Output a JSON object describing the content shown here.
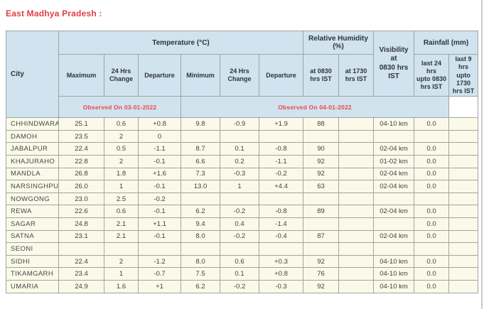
{
  "page": {
    "title": "East Madhya Pradesh :"
  },
  "table": {
    "group_headers": {
      "city": "City",
      "temperature": "Temperature (°C)",
      "humidity": "Relative Humidity (%)",
      "visibility": "Visibility at\n0830 hrs IST",
      "rainfall": "Rainfall (mm)"
    },
    "sub_headers": [
      "Maximum",
      "24 Hrs\nChange",
      "Departure",
      "Minimum",
      "24 Hrs\nChange",
      "Departure",
      "at 0830\nhrs IST",
      "at 1730\nhrs IST",
      "last 24 hrs\nupto 0830\nhrs IST",
      "last 9 hrs\nupto 1730\nhrs IST"
    ],
    "observed_left": "Observed On 03-01-2022",
    "observed_right": "Observed On 04-01-2022",
    "rows": [
      {
        "city": "CHHINDWARA",
        "values": [
          "25.1",
          "0.6",
          "+0.8",
          "9.8",
          "-0.9",
          "+1.9",
          "88",
          "",
          "04-10 km",
          "0.0",
          ""
        ]
      },
      {
        "city": "DAMOH",
        "values": [
          "23.5",
          "2",
          "0",
          "",
          "",
          "",
          "",
          "",
          "",
          "",
          ""
        ]
      },
      {
        "city": "JABALPUR",
        "values": [
          "22.4",
          "0.5",
          "-1.1",
          "8.7",
          "0.1",
          "-0.8",
          "90",
          "",
          "02-04 km",
          "0.0",
          ""
        ]
      },
      {
        "city": "KHAJURAHO",
        "values": [
          "22.8",
          "2",
          "-0.1",
          "6.6",
          "0.2",
          "-1.1",
          "92",
          "",
          "01-02 km",
          "0.0",
          ""
        ]
      },
      {
        "city": "MANDLA",
        "values": [
          "26.8",
          "1.8",
          "+1.6",
          "7.3",
          "-0.3",
          "-0.2",
          "92",
          "",
          "02-04 km",
          "0.0",
          ""
        ]
      },
      {
        "city": "NARSINGHPUR",
        "values": [
          "26.0",
          "1",
          "-0.1",
          "13.0",
          "1",
          "+4.4",
          "63",
          "",
          "02-04 km",
          "0.0",
          ""
        ]
      },
      {
        "city": "NOWGONG",
        "values": [
          "23.0",
          "2.5",
          "-0.2",
          "",
          "",
          "",
          "",
          "",
          "",
          "",
          ""
        ]
      },
      {
        "city": "REWA",
        "values": [
          "22.6",
          "0.6",
          "-0.1",
          "6.2",
          "-0.2",
          "-0.8",
          "89",
          "",
          "02-04 km",
          "0.0",
          ""
        ]
      },
      {
        "city": "SAGAR",
        "values": [
          "24.8",
          "2.1",
          "+1.1",
          "9.4",
          "0.4",
          "-1.4",
          "",
          "",
          "",
          "0.0",
          ""
        ]
      },
      {
        "city": "SATNA",
        "values": [
          "23.1",
          "2.1",
          "-0.1",
          "8.0",
          "-0.2",
          "-0.4",
          "87",
          "",
          "02-04 km",
          "0.0",
          ""
        ]
      },
      {
        "city": "SEONI",
        "values": [
          "",
          "",
          "",
          "",
          "",
          "",
          "",
          "",
          "",
          "",
          ""
        ]
      },
      {
        "city": "SIDHI",
        "values": [
          "22.4",
          "2",
          "-1.2",
          "8.0",
          "0.6",
          "+0.3",
          "92",
          "",
          "04-10 km",
          "0.0",
          ""
        ]
      },
      {
        "city": "TIKAMGARH",
        "values": [
          "23.4",
          "1",
          "-0.7",
          "7.5",
          "0.1",
          "+0.8",
          "76",
          "",
          "04-10 km",
          "0.0",
          ""
        ]
      },
      {
        "city": "UMARIA",
        "values": [
          "24.9",
          "1.6",
          "+1",
          "6.2",
          "-0.2",
          "-0.3",
          "92",
          "",
          "04-10 km",
          "0.0",
          ""
        ]
      }
    ]
  },
  "colors": {
    "header_bg": "#d0e3ee",
    "row_bg": "#fbfae8",
    "title_red": "#e23d44",
    "observed_red": "#e9494f",
    "border_gray": "#9fa4a8",
    "edge_line_gray": "#c9cdd0"
  }
}
